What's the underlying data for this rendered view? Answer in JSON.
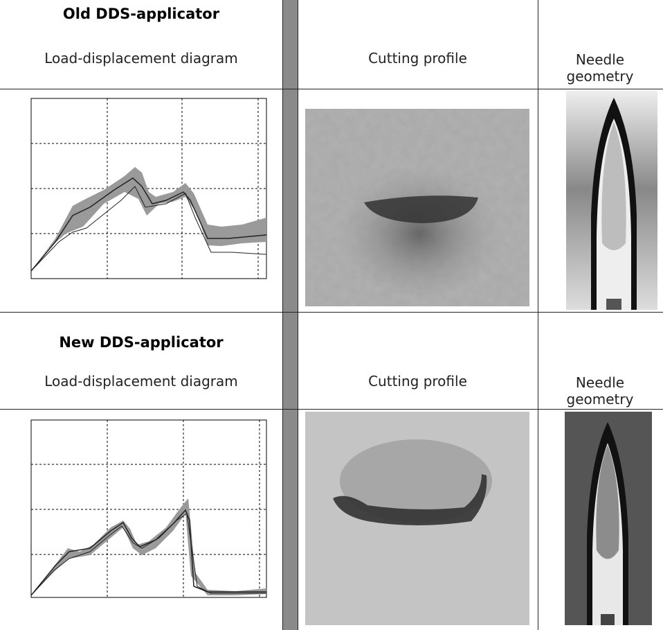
{
  "sections": [
    {
      "title": "Old DDS-applicator",
      "headers": [
        "Load-displacement diagram",
        "Cutting profile",
        "Needle geometry"
      ]
    },
    {
      "title": "New DDS-applicator",
      "headers": [
        "Load-displacement diagram",
        "Cutting profile",
        "Needle geometry"
      ]
    }
  ]
}
